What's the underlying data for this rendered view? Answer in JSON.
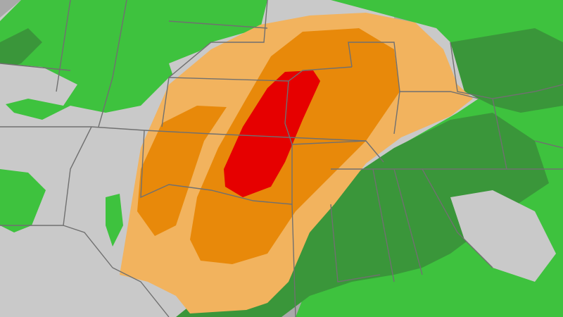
{
  "map": {
    "type": "severe-weather-risk-map",
    "colors": {
      "land": "#c9c9c9",
      "water": "#a9a9a9",
      "rain_light": "#3ec23e",
      "rain_heavy": "#3a963a",
      "risk_low": "#f2b35e",
      "risk_moderate": "#e8890a",
      "risk_high": "#e60000",
      "borders": "#707070"
    }
  }
}
